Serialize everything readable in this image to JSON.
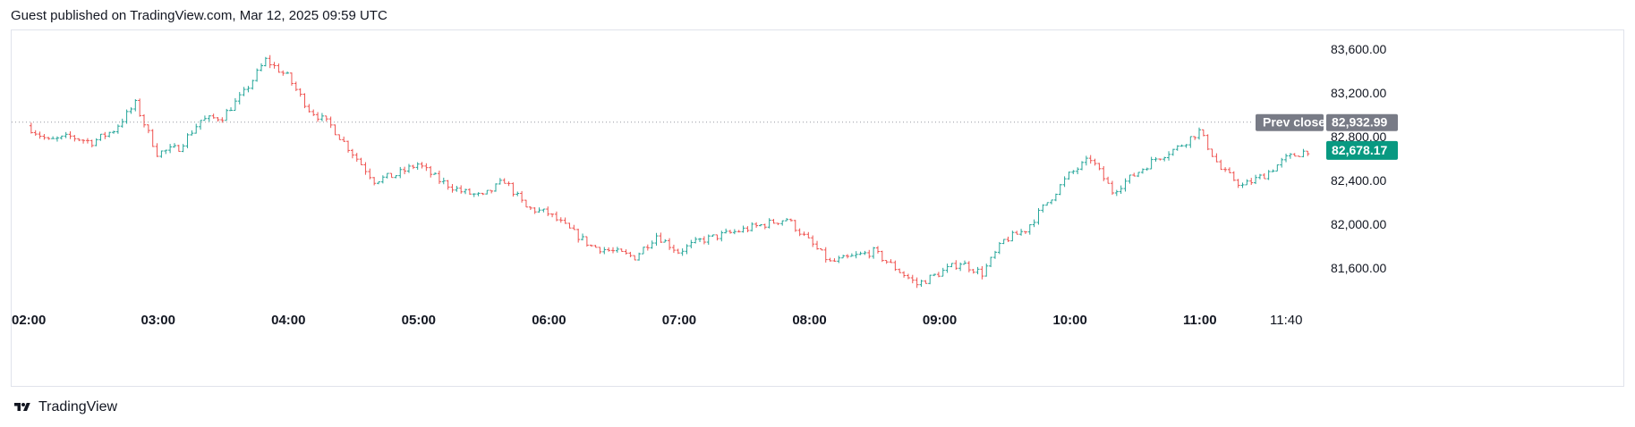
{
  "header": {
    "text": "Guest published on TradingView.com, Mar 12, 2025 09:59 UTC"
  },
  "footer": {
    "brand": "TradingView",
    "logo_icon": "tradingview-logo-icon"
  },
  "colors": {
    "up": "#26a69a",
    "down": "#ef5350",
    "prev_close_tag": "#787b86",
    "last_price_tag": "#089981",
    "grid": "#e0e3eb"
  },
  "chart_data": {
    "type": "candlestick",
    "title": "",
    "xlabel": "",
    "ylabel": "",
    "y_ticks": [
      "83,600.00",
      "83,200.00",
      "82,800.00",
      "82,400.00",
      "82,000.00",
      "81,600.00"
    ],
    "y_tick_values": [
      83600,
      83200,
      82800,
      82400,
      82000,
      81600
    ],
    "ylim": [
      81400,
      83800
    ],
    "x_ticks": [
      "02:00",
      "03:00",
      "04:00",
      "05:00",
      "06:00",
      "07:00",
      "08:00",
      "09:00",
      "10:00",
      "11:00",
      "11:40"
    ],
    "time_range": [
      "02:00",
      "12:00"
    ],
    "prev_close": {
      "label": "Prev close",
      "value": 82932.99,
      "value_label": "82,932.99"
    },
    "last_price": {
      "value": 82678.17,
      "value_label": "82,678.17"
    },
    "series": [
      {
        "name": "close",
        "interval_minutes": 10,
        "points": [
          [
            "02:00",
            82900
          ],
          [
            "02:10",
            82760
          ],
          [
            "02:20",
            82800
          ],
          [
            "02:30",
            82750
          ],
          [
            "02:40",
            82860
          ],
          [
            "02:50",
            83100
          ],
          [
            "03:00",
            82650
          ],
          [
            "03:10",
            82700
          ],
          [
            "03:20",
            82950
          ],
          [
            "03:30",
            82980
          ],
          [
            "03:40",
            83200
          ],
          [
            "03:50",
            83500
          ],
          [
            "04:00",
            83350
          ],
          [
            "04:10",
            83050
          ],
          [
            "04:20",
            82900
          ],
          [
            "04:30",
            82650
          ],
          [
            "04:40",
            82400
          ],
          [
            "04:50",
            82450
          ],
          [
            "05:00",
            82550
          ],
          [
            "05:10",
            82400
          ],
          [
            "05:20",
            82300
          ],
          [
            "05:30",
            82250
          ],
          [
            "05:40",
            82400
          ],
          [
            "05:50",
            82150
          ],
          [
            "06:00",
            82100
          ],
          [
            "06:10",
            81950
          ],
          [
            "06:20",
            81800
          ],
          [
            "06:30",
            81750
          ],
          [
            "06:40",
            81700
          ],
          [
            "06:50",
            81900
          ],
          [
            "07:00",
            81750
          ],
          [
            "07:10",
            81850
          ],
          [
            "07:20",
            81900
          ],
          [
            "07:30",
            81950
          ],
          [
            "07:40",
            82000
          ],
          [
            "07:50",
            82050
          ],
          [
            "08:00",
            81850
          ],
          [
            "08:10",
            81650
          ],
          [
            "08:20",
            81700
          ],
          [
            "08:30",
            81750
          ],
          [
            "08:40",
            81600
          ],
          [
            "08:50",
            81450
          ],
          [
            "09:00",
            81550
          ],
          [
            "09:10",
            81650
          ],
          [
            "09:20",
            81550
          ],
          [
            "09:30",
            81850
          ],
          [
            "09:40",
            81950
          ],
          [
            "09:50",
            82200
          ],
          [
            "10:00",
            82450
          ],
          [
            "10:10",
            82600
          ],
          [
            "10:20",
            82300
          ],
          [
            "10:30",
            82450
          ],
          [
            "10:40",
            82600
          ],
          [
            "10:50",
            82700
          ],
          [
            "11:00",
            82850
          ],
          [
            "11:10",
            82500
          ],
          [
            "11:20",
            82350
          ],
          [
            "11:30",
            82450
          ],
          [
            "11:40",
            82600
          ],
          [
            "11:50",
            82678
          ]
        ]
      }
    ]
  }
}
